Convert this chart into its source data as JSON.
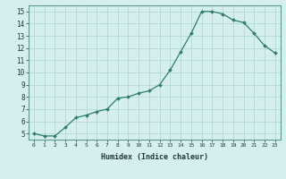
{
  "x": [
    0,
    1,
    2,
    3,
    4,
    5,
    6,
    7,
    8,
    9,
    10,
    11,
    12,
    13,
    14,
    15,
    16,
    17,
    18,
    19,
    20,
    21,
    22,
    23
  ],
  "y": [
    5.0,
    4.8,
    4.8,
    5.5,
    6.3,
    6.5,
    6.8,
    7.0,
    7.9,
    8.0,
    8.3,
    8.5,
    9.0,
    10.2,
    11.7,
    13.2,
    15.0,
    15.0,
    14.8,
    14.3,
    14.1,
    13.2,
    12.2,
    11.6
  ],
  "xlabel": "Humidex (Indice chaleur)",
  "line_color": "#2e7d6e",
  "marker": "D",
  "marker_size": 2.0,
  "bg_color": "#d4efec",
  "grid_color": "#b8dcd8",
  "xlim": [
    -0.5,
    23.5
  ],
  "ylim": [
    4.5,
    15.5
  ],
  "yticks": [
    5,
    6,
    7,
    8,
    9,
    10,
    11,
    12,
    13,
    14,
    15
  ],
  "xticks": [
    0,
    1,
    2,
    3,
    4,
    5,
    6,
    7,
    8,
    9,
    10,
    11,
    12,
    13,
    14,
    15,
    16,
    17,
    18,
    19,
    20,
    21,
    22,
    23
  ]
}
